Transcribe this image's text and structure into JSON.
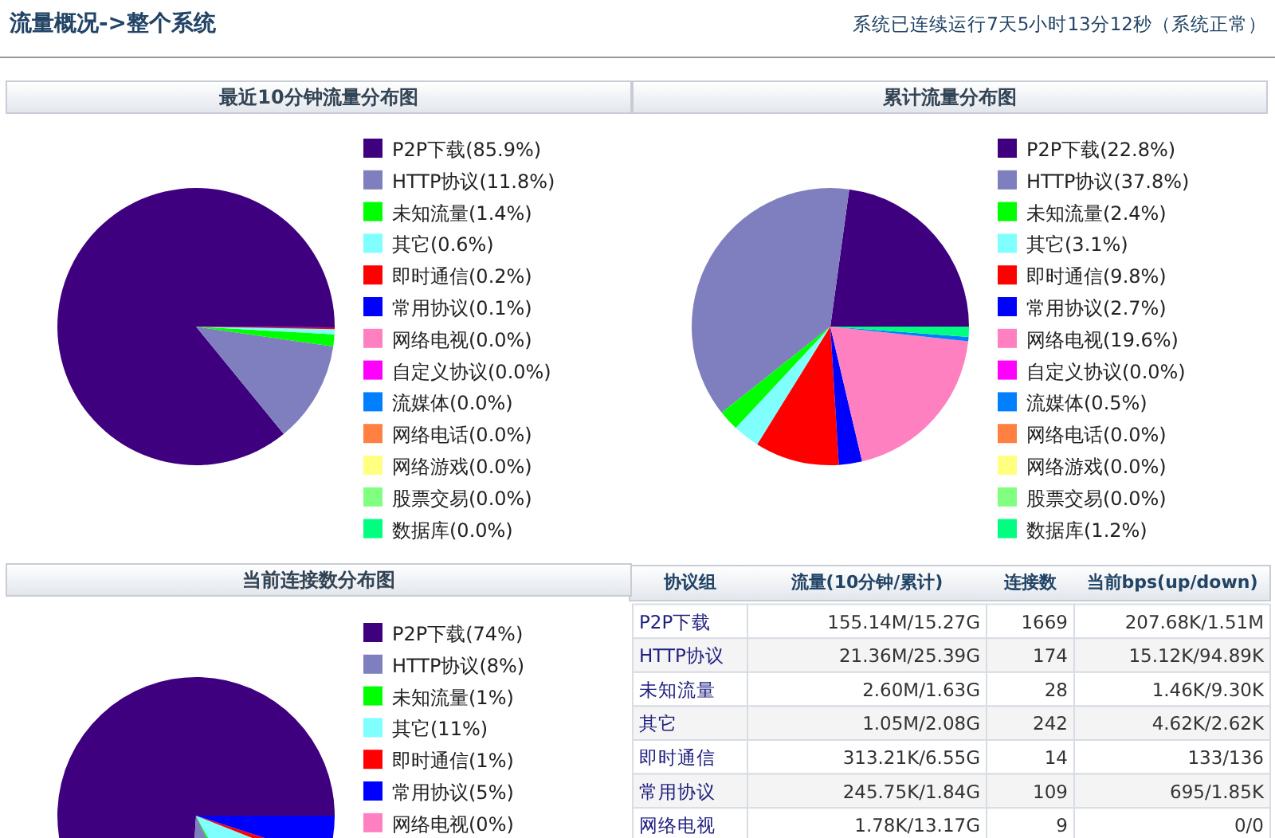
{
  "chart_data": [
    {
      "type": "other",
      "title": "流量概况->整个系统",
      "subtitle": "系统已连续运行7天5小时13分12秒（系统正常）"
    },
    {
      "type": "pie",
      "title": "最近10分钟流量分布图",
      "legend": "right",
      "categories": [
        "P2P下载(85.9%)",
        "HTTP协议(11.8%)",
        "未知流量(1.4%)",
        "其它(0.6%)",
        "即时通信(0.2%)",
        "常用协议(0.1%)",
        "网络电视(0.0%)",
        "自定义协议(0.0%)",
        "流媒体(0.0%)",
        "网络电话(0.0%)",
        "网络游戏(0.0%)",
        "股票交易(0.0%)",
        "数据库(0.0%)"
      ],
      "values": [
        85.9,
        11.8,
        1.4,
        0.6,
        0.2,
        0.1,
        0.0,
        0.0,
        0.0,
        0.0,
        0.0,
        0.0,
        0.0
      ],
      "colors": [
        "#3f007f",
        "#7f7fbf",
        "#00ff00",
        "#80ffff",
        "#ff0000",
        "#0000ff",
        "#ff80c0",
        "#ff00ff",
        "#0080ff",
        "#ff8040",
        "#ffff80",
        "#80ff80",
        "#00ff80"
      ]
    },
    {
      "type": "pie",
      "title": "累计流量分布图",
      "legend": "right",
      "categories": [
        "P2P下载(22.8%)",
        "HTTP协议(37.8%)",
        "未知流量(2.4%)",
        "其它(3.1%)",
        "即时通信(9.8%)",
        "常用协议(2.7%)",
        "网络电视(19.6%)",
        "自定义协议(0.0%)",
        "流媒体(0.5%)",
        "网络电话(0.0%)",
        "网络游戏(0.0%)",
        "股票交易(0.0%)",
        "数据库(1.2%)"
      ],
      "values": [
        22.8,
        37.8,
        2.4,
        3.1,
        9.8,
        2.7,
        19.6,
        0.0,
        0.5,
        0.0,
        0.0,
        0.0,
        1.2
      ],
      "colors": [
        "#3f007f",
        "#7f7fbf",
        "#00ff00",
        "#80ffff",
        "#ff0000",
        "#0000ff",
        "#ff80c0",
        "#ff00ff",
        "#0080ff",
        "#ff8040",
        "#ffff80",
        "#80ff80",
        "#00ff80"
      ]
    },
    {
      "type": "pie",
      "title": "当前连接数分布图",
      "legend": "right",
      "categories": [
        "P2P下载(74%)",
        "HTTP协议(8%)",
        "未知流量(1%)",
        "其它(11%)",
        "即时通信(1%)",
        "常用协议(5%)",
        "网络电视(0%)"
      ],
      "values": [
        74,
        8,
        1,
        11,
        1,
        5,
        0
      ],
      "colors": [
        "#3f007f",
        "#7f7fbf",
        "#00ff00",
        "#80ffff",
        "#ff0000",
        "#0000ff",
        "#ff80c0"
      ]
    },
    {
      "type": "other",
      "annotations": [
        "协议组",
        "流量(10分钟/累计)",
        "连接数",
        "当前bps(up/down)",
        "P2P下载",
        "155.14M/15.27G",
        "1669",
        "207.68K/1.51M",
        "HTTP协议",
        "21.36M/25.39G",
        "174",
        "15.12K/94.89K",
        "未知流量",
        "2.60M/1.63G",
        "28",
        "1.46K/9.30K",
        "其它",
        "1.05M/2.08G",
        "242",
        "4.62K/2.62K",
        "即时通信",
        "313.21K/6.55G",
        "14",
        "133/136",
        "常用协议",
        "245.75K/1.84G",
        "109",
        "695/1.85K",
        "网络电视",
        "1.78K/13.17G",
        "9",
        "0/0"
      ]
    }
  ]
}
